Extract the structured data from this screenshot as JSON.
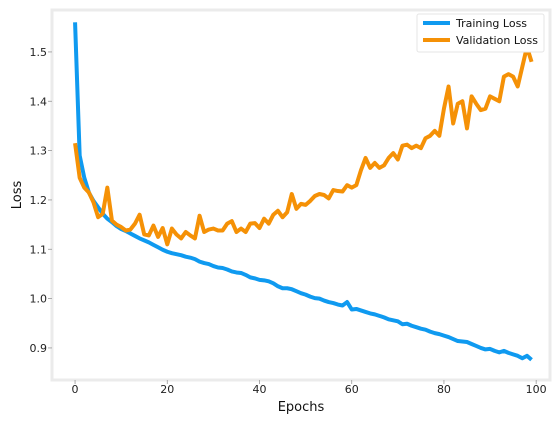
{
  "chart_data": {
    "type": "line",
    "title": "",
    "xlabel": "Epochs",
    "ylabel": "Loss",
    "xlim": [
      -5,
      103
    ],
    "ylim": [
      0.835,
      1.585
    ],
    "x_ticks": [
      0,
      20,
      40,
      60,
      80,
      100
    ],
    "y_ticks": [
      0.9,
      1.0,
      1.1,
      1.2,
      1.3,
      1.4,
      1.5
    ],
    "x_tick_labels": [
      "0",
      "20",
      "40",
      "60",
      "80",
      "100"
    ],
    "y_tick_labels": [
      "0.9",
      "1.0",
      "1.1",
      "1.2",
      "1.3",
      "1.4",
      "1.5"
    ],
    "grid": false,
    "legend_position": "top-right",
    "series": [
      {
        "name": "Training Loss",
        "color": "#0f9af0",
        "x": [
          0,
          1,
          2,
          3,
          4,
          5,
          6,
          7,
          8,
          9,
          10,
          11,
          12,
          13,
          14,
          15,
          16,
          17,
          18,
          19,
          20,
          21,
          22,
          23,
          24,
          25,
          26,
          27,
          28,
          29,
          30,
          31,
          32,
          33,
          34,
          35,
          36,
          37,
          38,
          39,
          40,
          41,
          42,
          43,
          44,
          45,
          46,
          47,
          48,
          49,
          50,
          51,
          52,
          53,
          54,
          55,
          56,
          57,
          58,
          59,
          60,
          61,
          62,
          63,
          64,
          65,
          66,
          67,
          68,
          69,
          70,
          71,
          72,
          73,
          74,
          75,
          76,
          77,
          78,
          79,
          80,
          81,
          82,
          83,
          84,
          85,
          86,
          87,
          88,
          89,
          90,
          91,
          92,
          93,
          94,
          95,
          96,
          97,
          98,
          99
        ],
        "values": [
          1.56,
          1.29,
          1.245,
          1.215,
          1.198,
          1.185,
          1.172,
          1.162,
          1.155,
          1.147,
          1.141,
          1.137,
          1.132,
          1.127,
          1.122,
          1.118,
          1.114,
          1.109,
          1.104,
          1.099,
          1.095,
          1.092,
          1.09,
          1.088,
          1.085,
          1.083,
          1.08,
          1.075,
          1.072,
          1.07,
          1.066,
          1.063,
          1.062,
          1.059,
          1.055,
          1.053,
          1.052,
          1.048,
          1.043,
          1.041,
          1.038,
          1.037,
          1.035,
          1.031,
          1.025,
          1.021,
          1.021,
          1.019,
          1.015,
          1.011,
          1.008,
          1.004,
          1.001,
          1.0,
          0.996,
          0.993,
          0.991,
          0.988,
          0.986,
          0.993,
          0.978,
          0.979,
          0.976,
          0.973,
          0.97,
          0.968,
          0.965,
          0.962,
          0.958,
          0.956,
          0.954,
          0.948,
          0.949,
          0.945,
          0.942,
          0.939,
          0.937,
          0.933,
          0.93,
          0.928,
          0.925,
          0.922,
          0.918,
          0.914,
          0.913,
          0.912,
          0.908,
          0.904,
          0.9,
          0.897,
          0.898,
          0.894,
          0.891,
          0.894,
          0.89,
          0.887,
          0.884,
          0.879,
          0.884,
          0.876
        ]
      },
      {
        "name": "Validation Loss",
        "color": "#f59106",
        "x": [
          0,
          1,
          2,
          3,
          4,
          5,
          6,
          7,
          8,
          9,
          10,
          11,
          12,
          13,
          14,
          15,
          16,
          17,
          18,
          19,
          20,
          21,
          22,
          23,
          24,
          25,
          26,
          27,
          28,
          29,
          30,
          31,
          32,
          33,
          34,
          35,
          36,
          37,
          38,
          39,
          40,
          41,
          42,
          43,
          44,
          45,
          46,
          47,
          48,
          49,
          50,
          51,
          52,
          53,
          54,
          55,
          56,
          57,
          58,
          59,
          60,
          61,
          62,
          63,
          64,
          65,
          66,
          67,
          68,
          69,
          70,
          71,
          72,
          73,
          74,
          75,
          76,
          77,
          78,
          79,
          80,
          81,
          82,
          83,
          84,
          85,
          86,
          87,
          88,
          89,
          90,
          91,
          92,
          93,
          94,
          95,
          96,
          97,
          98,
          99
        ],
        "values": [
          1.315,
          1.245,
          1.225,
          1.215,
          1.195,
          1.165,
          1.172,
          1.225,
          1.158,
          1.15,
          1.145,
          1.138,
          1.14,
          1.152,
          1.17,
          1.13,
          1.128,
          1.148,
          1.125,
          1.143,
          1.11,
          1.142,
          1.13,
          1.122,
          1.135,
          1.128,
          1.122,
          1.168,
          1.135,
          1.14,
          1.142,
          1.138,
          1.138,
          1.152,
          1.157,
          1.135,
          1.142,
          1.135,
          1.152,
          1.153,
          1.143,
          1.162,
          1.152,
          1.17,
          1.178,
          1.165,
          1.175,
          1.212,
          1.182,
          1.192,
          1.19,
          1.198,
          1.208,
          1.212,
          1.21,
          1.203,
          1.22,
          1.218,
          1.217,
          1.23,
          1.225,
          1.23,
          1.26,
          1.285,
          1.265,
          1.275,
          1.265,
          1.27,
          1.285,
          1.295,
          1.282,
          1.31,
          1.312,
          1.305,
          1.31,
          1.305,
          1.325,
          1.33,
          1.34,
          1.33,
          1.385,
          1.43,
          1.355,
          1.395,
          1.4,
          1.345,
          1.41,
          1.395,
          1.382,
          1.385,
          1.41,
          1.405,
          1.4,
          1.45,
          1.455,
          1.45,
          1.43,
          1.47,
          1.51,
          1.48
        ]
      }
    ]
  }
}
